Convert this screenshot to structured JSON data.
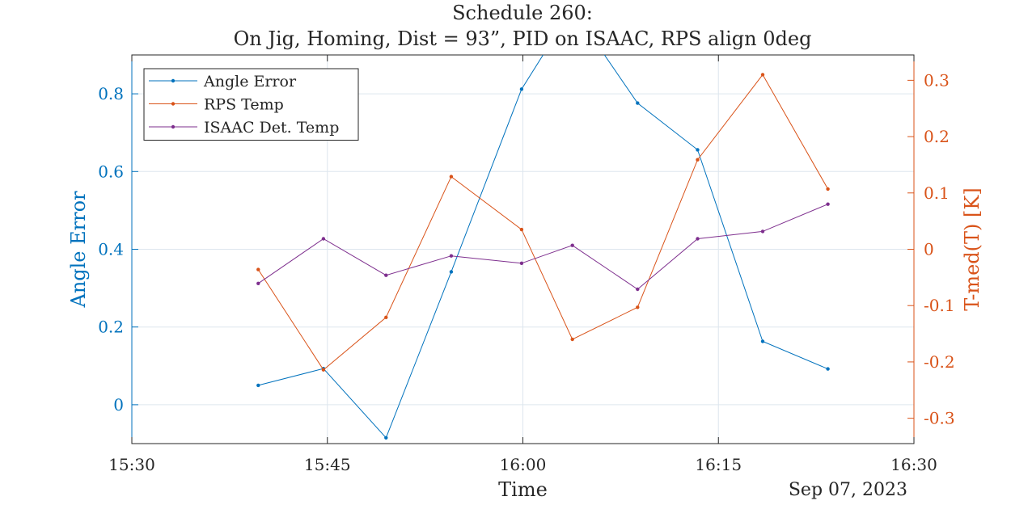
{
  "chart_data": {
    "type": "line",
    "title": "Schedule 260:",
    "subtitle": "On Jig, Homing, Dist = 93”, PID on ISAAC, RPS align 0deg",
    "xlabel": "Time",
    "x_secondary_label": "Sep 07, 2023",
    "x_ticks": [
      "15:30",
      "15:45",
      "16:00",
      "16:15",
      "16:30"
    ],
    "x_range_minutes": [
      0,
      60
    ],
    "left_axis": {
      "label": "Angle Error",
      "range": [
        -0.1,
        0.9
      ],
      "ticks": [
        0,
        0.2,
        0.4,
        0.6,
        0.8
      ],
      "tick_labels": [
        "0",
        "0.2",
        "0.4",
        "0.6",
        "0.8"
      ],
      "color": "#0072BD"
    },
    "right_axis": {
      "label": "T-med(T) [K]",
      "range": [
        -0.345,
        0.345
      ],
      "ticks": [
        -0.3,
        -0.2,
        -0.1,
        0,
        0.1,
        0.2,
        0.3
      ],
      "tick_labels": [
        "-0.3",
        "-0.2",
        "-0.1",
        "0",
        "0.1",
        "0.2",
        "0.3"
      ],
      "color": "#D95319"
    },
    "grid": true,
    "legend_position": "top-left",
    "x_times": [
      "15:39.7",
      "15:44.7",
      "15:49.5",
      "15:54.6",
      "15:59.9",
      "16:03.8",
      "16:08.8",
      "16:13.4",
      "16:18.4",
      "16:23.4"
    ],
    "series": [
      {
        "name": "Angle Error",
        "axis": "left",
        "color": "#0072BD",
        "x_minutes": [
          9.7,
          14.7,
          19.5,
          24.5,
          29.9,
          33.8,
          38.8,
          43.4,
          48.4,
          53.4
        ],
        "values": [
          0.05,
          0.093,
          -0.085,
          0.342,
          0.812,
          1.02,
          0.776,
          0.656,
          0.163,
          0.092
        ]
      },
      {
        "name": "RPS Temp",
        "axis": "right",
        "color": "#D95319",
        "x_minutes": [
          9.7,
          14.7,
          19.5,
          24.5,
          29.9,
          33.8,
          38.8,
          43.4,
          48.4,
          53.4
        ],
        "values": [
          -0.036,
          -0.214,
          -0.121,
          0.129,
          0.035,
          -0.16,
          -0.103,
          0.159,
          0.31,
          0.107
        ]
      },
      {
        "name": "ISAAC Det. Temp",
        "axis": "left",
        "color": "#7E2F8E",
        "x_minutes": [
          9.7,
          14.7,
          19.5,
          24.5,
          29.9,
          33.8,
          38.8,
          43.4,
          48.4,
          53.4
        ],
        "values": [
          0.312,
          0.427,
          0.333,
          0.383,
          0.364,
          0.41,
          0.297,
          0.427,
          0.446,
          0.516
        ]
      }
    ]
  }
}
